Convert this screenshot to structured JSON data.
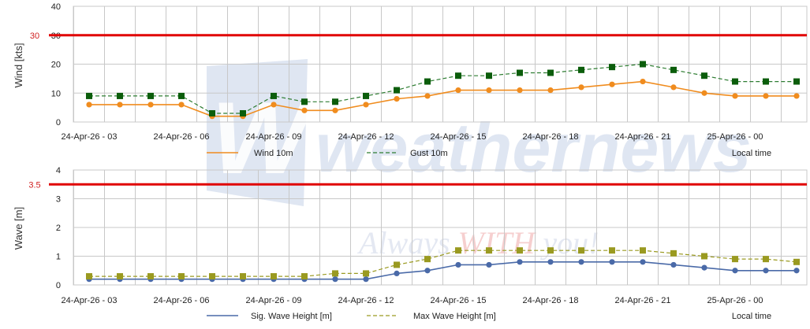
{
  "watermark": {
    "logo_letters": "WN",
    "brand": "weathernews",
    "tagline_parts": [
      "Always ",
      "WITH",
      " you!"
    ],
    "colors": {
      "logo": "#dfe6f2",
      "tagline": "#e4e8f2",
      "tagline_accent": "#f6cfcf"
    }
  },
  "colors": {
    "wind": "#f08c1e",
    "gust": "#2e7d32",
    "gust_marker": "#0b5d0b",
    "sig_wave": "#4a6aa8",
    "max_wave": "#9a9a20",
    "threshold": "#e00000",
    "threshold_label": "#d02020",
    "grid": "#c8c8c8",
    "text": "#222222"
  },
  "chart_data": [
    {
      "type": "line",
      "id": "wind",
      "ylabel": "Wind [kts]",
      "ylim": [
        0,
        40
      ],
      "yticks": [
        0,
        10,
        20,
        30,
        40
      ],
      "threshold": {
        "value": 30,
        "label": "30"
      },
      "x_tick_labels": [
        "24-Apr-26 - 03",
        "24-Apr-26 - 06",
        "24-Apr-26 - 09",
        "24-Apr-26 - 12",
        "24-Apr-26 - 15",
        "24-Apr-26 - 18",
        "24-Apr-26 - 21",
        "25-Apr-26 - 00"
      ],
      "x_axis_title": "Local time",
      "grid": true,
      "legend": "bottom",
      "series": [
        {
          "name": "Wind 10m",
          "style": "solid",
          "marker": "circle",
          "values": [
            6,
            6,
            6,
            6,
            2,
            2,
            6,
            4,
            4,
            6,
            8,
            9,
            11,
            11,
            11,
            11,
            12,
            13,
            14,
            12,
            10,
            9,
            9,
            9
          ]
        },
        {
          "name": "Gust 10m",
          "style": "dashed",
          "marker": "square",
          "values": [
            9,
            9,
            9,
            9,
            3,
            3,
            9,
            7,
            7,
            9,
            11,
            14,
            16,
            16,
            17,
            17,
            18,
            19,
            20,
            18,
            16,
            14,
            14,
            14
          ]
        }
      ]
    },
    {
      "type": "line",
      "id": "wave",
      "ylabel": "Wave [m]",
      "ylim": [
        0,
        4
      ],
      "yticks": [
        0,
        1,
        2,
        3,
        4
      ],
      "threshold": {
        "value": 3.5,
        "label": "3.5"
      },
      "x_tick_labels": [
        "24-Apr-26 - 03",
        "24-Apr-26 - 06",
        "24-Apr-26 - 09",
        "24-Apr-26 - 12",
        "24-Apr-26 - 15",
        "24-Apr-26 - 18",
        "24-Apr-26 - 21",
        "25-Apr-26 - 00"
      ],
      "x_axis_title": "Local time",
      "grid": true,
      "legend": "bottom",
      "series": [
        {
          "name": "Sig. Wave Height [m]",
          "style": "solid",
          "marker": "circle",
          "values": [
            0.2,
            0.2,
            0.2,
            0.2,
            0.2,
            0.2,
            0.2,
            0.2,
            0.2,
            0.2,
            0.4,
            0.5,
            0.7,
            0.7,
            0.8,
            0.8,
            0.8,
            0.8,
            0.8,
            0.7,
            0.6,
            0.5,
            0.5,
            0.5
          ]
        },
        {
          "name": "Max Wave Height [m]",
          "style": "dashed",
          "marker": "square",
          "values": [
            0.3,
            0.3,
            0.3,
            0.3,
            0.3,
            0.3,
            0.3,
            0.3,
            0.4,
            0.4,
            0.7,
            0.9,
            1.2,
            1.2,
            1.2,
            1.2,
            1.2,
            1.2,
            1.2,
            1.1,
            1.0,
            0.9,
            0.9,
            0.8
          ]
        }
      ]
    }
  ]
}
